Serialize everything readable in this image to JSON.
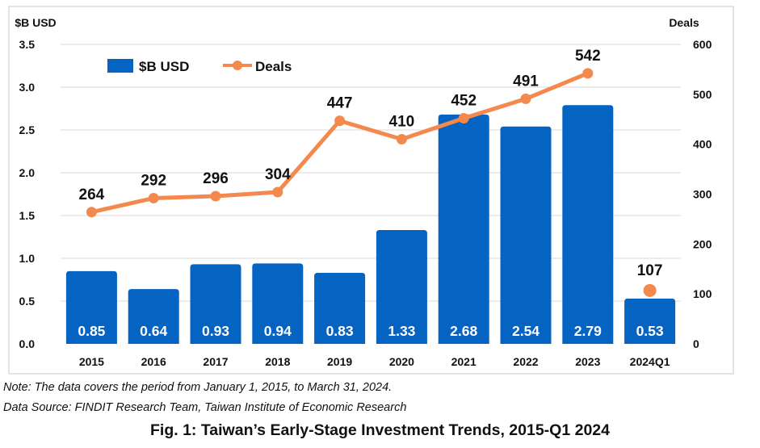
{
  "chart_data": {
    "type": "bar",
    "title": "",
    "categories": [
      "2015",
      "2016",
      "2017",
      "2018",
      "2019",
      "2020",
      "2021",
      "2022",
      "2023",
      "2024Q1"
    ],
    "series": [
      {
        "name": "$B USD",
        "type": "bar",
        "axis": "left",
        "values": [
          0.85,
          0.64,
          0.93,
          0.94,
          0.83,
          1.33,
          2.68,
          2.54,
          2.79,
          0.53
        ],
        "labels": [
          "0.85",
          "0.64",
          "0.93",
          "0.94",
          "0.83",
          "1.33",
          "2.68",
          "2.54",
          "2.79",
          "0.53"
        ]
      },
      {
        "name": "Deals",
        "type": "line",
        "axis": "right",
        "values": [
          264,
          292,
          296,
          304,
          447,
          410,
          452,
          491,
          542,
          107
        ],
        "labels": [
          "264",
          "292",
          "296",
          "304",
          "447",
          "410",
          "452",
          "491",
          "542",
          "107"
        ]
      }
    ],
    "ylabel_left": "$B USD",
    "ylabel_right": "Deals",
    "ylim_left": [
      0,
      3.5
    ],
    "ylim_right": [
      0,
      600
    ],
    "yticks_left": [
      "0.0",
      "0.5",
      "1.0",
      "1.5",
      "2.0",
      "2.5",
      "3.0",
      "3.5"
    ],
    "yticks_right": [
      "0",
      "100",
      "200",
      "300",
      "400",
      "500",
      "600"
    ],
    "grid": "horizontal",
    "legend_position": "top-left",
    "colors": {
      "bar": "#0563c1",
      "line": "#f4894e",
      "bar_label": "#ffffff",
      "text": "#111111",
      "grid": "#d9d9d9",
      "frame": "#c8c8c8"
    }
  },
  "footer": {
    "note": "Note: The data covers the period from January 1, 2015, to March 31, 2024.",
    "source": "Data Source: FINDIT Research Team, Taiwan Institute of Economic Research",
    "caption": "Fig. 1: Taiwan’s Early-Stage Investment Trends, 2015-Q1 2024"
  }
}
